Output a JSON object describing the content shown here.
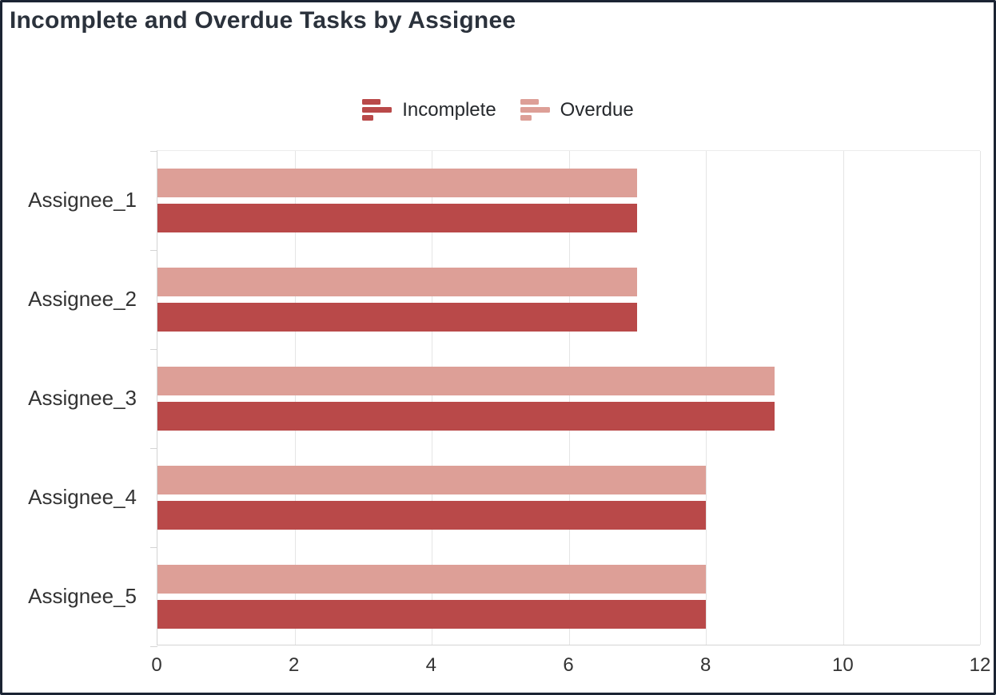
{
  "title": "Incomplete and Overdue Tasks by Assignee",
  "colors": {
    "incomplete": "#b94949",
    "overdue": "#dd9f97",
    "title_text": "#2b323c",
    "axis_text": "#333333",
    "gridline": "#e5e5e5",
    "frame_border": "#1b2433"
  },
  "legend": {
    "items": [
      {
        "label": "Incomplete",
        "color": "#b94949"
      },
      {
        "label": "Overdue",
        "color": "#dd9f97"
      }
    ]
  },
  "chart_data": {
    "type": "bar",
    "orientation": "horizontal",
    "title": "Incomplete and Overdue Tasks by Assignee",
    "categories": [
      "Assignee_1",
      "Assignee_2",
      "Assignee_3",
      "Assignee_4",
      "Assignee_5"
    ],
    "series": [
      {
        "name": "Incomplete",
        "color": "#b94949",
        "values": [
          7,
          7,
          9,
          8,
          8
        ]
      },
      {
        "name": "Overdue",
        "color": "#dd9f97",
        "values": [
          7,
          7,
          9,
          8,
          8
        ]
      }
    ],
    "xlabel": "",
    "ylabel": "",
    "xlim": [
      0,
      12
    ],
    "x_ticks": [
      0,
      2,
      4,
      6,
      8,
      10,
      12
    ],
    "grid": true,
    "legend_position": "top-center",
    "bar_order_within_group": [
      "Overdue",
      "Incomplete"
    ]
  }
}
